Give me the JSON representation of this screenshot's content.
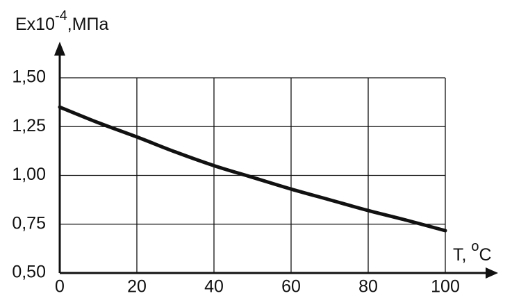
{
  "chart_data": {
    "type": "line",
    "y_label": {
      "base": "Ex10",
      "exponent": "-4",
      "unit": ",МПа"
    },
    "x_label": {
      "base": "T, ",
      "exponent": "o",
      "unit": "C"
    },
    "x": [
      0,
      10,
      20,
      30,
      40,
      50,
      60,
      70,
      80,
      90,
      100
    ],
    "series": [
      {
        "color": "#111111",
        "values": [
          1.35,
          1.27,
          1.197,
          1.12,
          1.05,
          0.99,
          0.93,
          0.875,
          0.82,
          0.77,
          0.717
        ]
      }
    ],
    "xlim": [
      0,
      100
    ],
    "xticks": [
      0,
      20,
      40,
      60,
      80,
      100
    ],
    "ylim": [
      0.5,
      1.5
    ],
    "yticks": [
      {
        "value": 0.5,
        "label": "0,50"
      },
      {
        "value": 0.75,
        "label": "0,75"
      },
      {
        "value": 1.0,
        "label": "1,00"
      },
      {
        "value": 1.25,
        "label": "1,25"
      },
      {
        "value": 1.5,
        "label": "1,50"
      }
    ],
    "grid": true
  }
}
